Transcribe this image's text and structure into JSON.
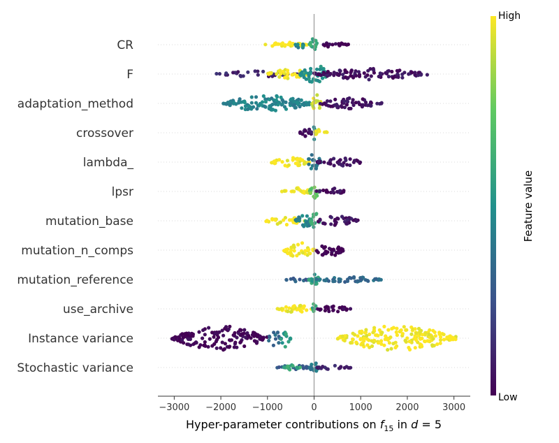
{
  "chart_data": {
    "type": "scatter",
    "subtype": "shap-beeswarm",
    "title": "",
    "xlabel_prefix": "Hyper-parameter contributions on ",
    "xlabel_symbol": "f",
    "xlabel_subscript": "15",
    "xlabel_mid": " in ",
    "xlabel_d": "d",
    "xlabel_suffix": " = 5",
    "xlim": [
      -3350,
      3350
    ],
    "xticks": [
      -3000,
      -2000,
      -1000,
      0,
      1000,
      2000,
      3000
    ],
    "xtick_labels": [
      "−3000",
      "−2000",
      "−1000",
      "0",
      "1000",
      "2000",
      "3000"
    ],
    "zero_line": 0,
    "grid": false,
    "colorbar": {
      "label": "Feature value",
      "high_label": "High",
      "low_label": "Low",
      "colormap": "viridis",
      "colors": [
        "#440154",
        "#3b528b",
        "#21918c",
        "#5ec962",
        "#fde725"
      ]
    },
    "features": [
      {
        "name": "CR",
        "min": -1050,
        "max": 750,
        "spread": 0.22,
        "segments": [
          {
            "from": -1050,
            "to": -150,
            "value": 1.0,
            "density": 0.45
          },
          {
            "from": -400,
            "to": -200,
            "value": 0.45,
            "density": 0.7
          },
          {
            "from": -100,
            "to": 100,
            "value": 0.6,
            "density": 1.0
          },
          {
            "from": 50,
            "to": 750,
            "value": 0.0,
            "density": 0.35
          }
        ]
      },
      {
        "name": "F",
        "min": -2100,
        "max": 2450,
        "spread": 0.35,
        "segments": [
          {
            "from": -2100,
            "to": -300,
            "value": 0.1,
            "density": 0.3
          },
          {
            "from": -1000,
            "to": -100,
            "value": 1.0,
            "density": 0.5
          },
          {
            "from": -300,
            "to": 300,
            "value": 0.5,
            "density": 1.0
          },
          {
            "from": 0,
            "to": 2450,
            "value": 0.05,
            "density": 0.55
          }
        ]
      },
      {
        "name": "adaptation_method",
        "min": -1950,
        "max": 1450,
        "spread": 0.3,
        "segments": [
          {
            "from": -1950,
            "to": -50,
            "value": 0.45,
            "density": 0.9
          },
          {
            "from": -50,
            "to": 150,
            "value": 0.95,
            "density": 1.0
          },
          {
            "from": 100,
            "to": 1450,
            "value": 0.05,
            "density": 0.6
          }
        ]
      },
      {
        "name": "crossover",
        "min": -300,
        "max": 300,
        "spread": 0.25,
        "segments": [
          {
            "from": -300,
            "to": 0,
            "value": 0.05,
            "density": 0.6
          },
          {
            "from": -30,
            "to": 30,
            "value": 0.5,
            "density": 1.0
          },
          {
            "from": 0,
            "to": 300,
            "value": 1.0,
            "density": 0.6
          }
        ]
      },
      {
        "name": "lambda_",
        "min": -950,
        "max": 1050,
        "spread": 0.28,
        "segments": [
          {
            "from": -950,
            "to": -100,
            "value": 1.0,
            "density": 0.55
          },
          {
            "from": -150,
            "to": 150,
            "value": 0.4,
            "density": 1.0
          },
          {
            "from": 50,
            "to": 1050,
            "value": 0.05,
            "density": 0.5
          }
        ]
      },
      {
        "name": "lpsr",
        "min": -700,
        "max": 700,
        "spread": 0.25,
        "segments": [
          {
            "from": -700,
            "to": -50,
            "value": 1.0,
            "density": 0.5
          },
          {
            "from": -100,
            "to": 100,
            "value": 0.75,
            "density": 1.0
          },
          {
            "from": 50,
            "to": 700,
            "value": 0.05,
            "density": 0.45
          }
        ]
      },
      {
        "name": "mutation_base",
        "min": -1050,
        "max": 950,
        "spread": 0.3,
        "segments": [
          {
            "from": -1050,
            "to": -200,
            "value": 1.0,
            "density": 0.45
          },
          {
            "from": -400,
            "to": 0,
            "value": 0.45,
            "density": 0.7
          },
          {
            "from": -80,
            "to": 120,
            "value": 0.6,
            "density": 1.0
          },
          {
            "from": 50,
            "to": 950,
            "value": 0.05,
            "density": 0.55
          }
        ]
      },
      {
        "name": "mutation_n_comps",
        "min": -650,
        "max": 650,
        "spread": 0.3,
        "segments": [
          {
            "from": -650,
            "to": 0,
            "value": 1.0,
            "density": 0.85
          },
          {
            "from": 0,
            "to": 650,
            "value": 0.0,
            "density": 0.7
          }
        ]
      },
      {
        "name": "mutation_reference",
        "min": -650,
        "max": 1450,
        "spread": 0.2,
        "segments": [
          {
            "from": -650,
            "to": -100,
            "value": 0.3,
            "density": 0.35
          },
          {
            "from": -120,
            "to": 120,
            "value": 0.55,
            "density": 1.0
          },
          {
            "from": 50,
            "to": 1450,
            "value": 0.35,
            "density": 0.45
          }
        ]
      },
      {
        "name": "use_archive",
        "min": -800,
        "max": 800,
        "spread": 0.22,
        "segments": [
          {
            "from": -800,
            "to": 0,
            "value": 1.0,
            "density": 0.55
          },
          {
            "from": -50,
            "to": 50,
            "value": 0.6,
            "density": 1.0
          },
          {
            "from": 0,
            "to": 800,
            "value": 0.0,
            "density": 0.45
          }
        ]
      },
      {
        "name": "Instance variance",
        "min": -3050,
        "max": 3050,
        "spread": 0.42,
        "segments": [
          {
            "from": -3050,
            "to": -1000,
            "value": 0.0,
            "density": 1.0
          },
          {
            "from": -1000,
            "to": -700,
            "value": 0.35,
            "density": 0.6
          },
          {
            "from": -750,
            "to": -500,
            "value": 0.55,
            "density": 0.7
          },
          {
            "from": 500,
            "to": 3050,
            "value": 1.0,
            "density": 1.0
          }
        ]
      },
      {
        "name": "Stochastic variance",
        "min": -800,
        "max": 800,
        "spread": 0.2,
        "segments": [
          {
            "from": -800,
            "to": -100,
            "value": 0.3,
            "density": 0.4
          },
          {
            "from": -650,
            "to": -300,
            "value": 0.6,
            "density": 0.5
          },
          {
            "from": -100,
            "to": 100,
            "value": 0.4,
            "density": 1.0
          },
          {
            "from": 50,
            "to": 800,
            "value": 0.1,
            "density": 0.35
          }
        ]
      }
    ]
  }
}
